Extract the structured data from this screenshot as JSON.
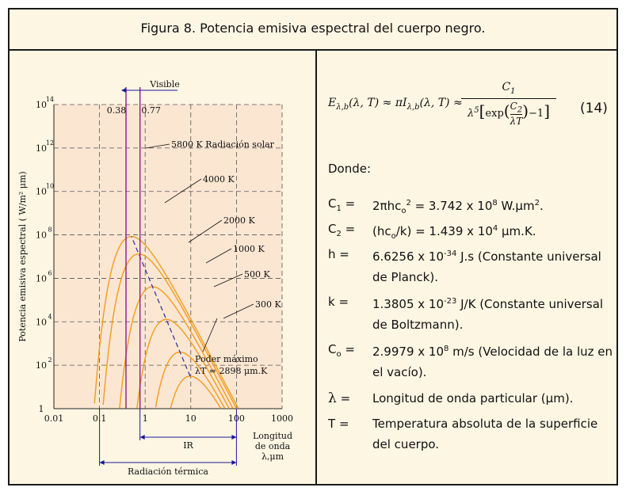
{
  "figure": {
    "title": "Figura 8. Potencia emisiva espectral del cuerpo negro."
  },
  "chart_data": {
    "type": "line",
    "xscale": "log",
    "yscale": "log",
    "xlim": [
      0.01,
      1000
    ],
    "ylim": [
      1,
      100000000000000
    ],
    "x_ticks": [
      "0.01",
      "0.1",
      "1",
      "10",
      "100",
      "1000"
    ],
    "y_ticks": [
      {
        "base": "1",
        "exp": ""
      },
      {
        "base": "10",
        "exp": "2"
      },
      {
        "base": "10",
        "exp": "4"
      },
      {
        "base": "10",
        "exp": "6"
      },
      {
        "base": "10",
        "exp": "8"
      },
      {
        "base": "10",
        "exp": "10"
      },
      {
        "base": "10",
        "exp": "12"
      },
      {
        "base": "10",
        "exp": "14"
      }
    ],
    "ylabel": "Potencia emisiva espectral ( W/m² μm)",
    "xlabel_lines": [
      "Longitud",
      "de onda",
      "λ,μm"
    ],
    "grid": true,
    "series": [
      {
        "name": "5800 K Radiación solar",
        "temperature": 5800
      },
      {
        "name": "4000 K",
        "temperature": 4000
      },
      {
        "name": "2000 K",
        "temperature": 2000
      },
      {
        "name": "1000 K",
        "temperature": 1000
      },
      {
        "name": "500 K",
        "temperature": 500
      },
      {
        "name": "300 K",
        "temperature": 300
      }
    ],
    "max_power": {
      "label_lines": [
        "Poder máximo",
        "λT = 2898 μm.K"
      ],
      "lambdaT": 2898
    },
    "visible_band": {
      "label": "Visible",
      "start": 0.38,
      "end": 0.77,
      "start_label": "0.38",
      "end_label": "0.77"
    },
    "ir_band": {
      "label": "IR",
      "start": 0.77,
      "end": 100
    },
    "thermal_band": {
      "label": "Radiación térmica",
      "start": 0.1,
      "end": 100
    },
    "colors": {
      "curve": "#f39c1e",
      "max_line": "#2b2b9e",
      "visible": "#8a1e8a",
      "band": "#1a1a9a",
      "plot_bg": "#fbe6d2"
    }
  },
  "equation": {
    "lhs": "E",
    "lhs_sub": "λ,b",
    "lhs_args": "(λ, T) ≈ πI",
    "mid_sub": "λ,b",
    "mid_args": "(λ, T) ≈",
    "numerator": "C",
    "numerator_sub": "1",
    "den_lambda": "λ",
    "den_exp": "5",
    "den_exp_word": "exp",
    "inner_num": "C",
    "inner_num_sub": "2",
    "inner_den": "λT",
    "den_minus": "−1",
    "number": "(14)"
  },
  "donde": "Donde:",
  "definitions": [
    {
      "sym": "C",
      "sym_sub": "1",
      "sym_suffix": "=",
      "text": "2πhc",
      "text_sub": "o",
      "text_sup": "2",
      "text_rest": " = 3.742 x 10",
      "text_sup2": "8",
      "text_rest2": " W.μm",
      "text_sup3": "2",
      "text_end": "."
    },
    {
      "sym": "C",
      "sym_sub": "2",
      "sym_suffix": "=",
      "text": "(hc",
      "text_sub": "o",
      "text_rest": "/k) = 1.439 x 10",
      "text_sup2": "4",
      "text_rest2": " μm.K."
    },
    {
      "sym": "h",
      "sym_suffix": "=",
      "text": "6.6256 x 10",
      "text_sup": "-34",
      "text_rest": " J.s (Constante universal de Planck)."
    },
    {
      "sym": "k",
      "sym_suffix": "=",
      "text": "1.3805 x 10",
      "text_sup": "-23",
      "text_rest": " J/K (Constante universal de Boltzmann)."
    },
    {
      "sym": "C",
      "sym_sub": "o",
      "sym_suffix": "=",
      "text": "2.9979 x 10",
      "text_sup": "8",
      "text_rest": " m/s (Velocidad de la luz en el vacío)."
    },
    {
      "sym": "λ",
      "sym_suffix": "=",
      "text": "Longitud de onda particular (μm)."
    },
    {
      "sym": "T",
      "sym_suffix": "=",
      "text": "Temperatura absoluta de la superficie del cuerpo."
    }
  ]
}
